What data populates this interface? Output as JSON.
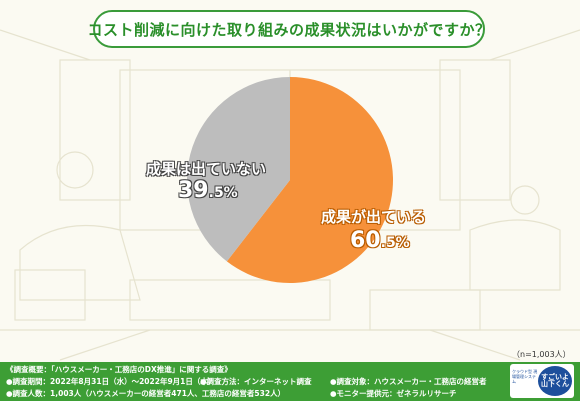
{
  "title": "コスト削減に向けた取り組みの成果状況はいかがですか？",
  "chart_data": {
    "type": "pie",
    "title": "コスト削減に向けた取り組みの成果状況はいかがですか？",
    "start": "12 o'clock, clockwise",
    "slices": [
      {
        "label": "成果が出ている",
        "value": 60.5,
        "value_int": "60",
        "value_dec": ".5%",
        "color": "#f6913a"
      },
      {
        "label": "成果は出ていない",
        "value": 39.5,
        "value_int": "39",
        "value_dec": ".5%",
        "color": "#bdbdbd"
      }
    ],
    "note": "（n=1,003人）"
  },
  "footer": {
    "line1": "《調査概要：「ハウスメーカー・工務店のDX推進」に関する調査》",
    "period": "●調査期間：2022年8月31日（水）〜2022年9月1日（木）",
    "method": "●調査方法：インターネット調査",
    "target": "●調査対象：ハウスメーカー・工務店の経営者",
    "count": "●調査人数：1,003人（ハウスメーカーの経営者471人、工務店の経営者532人）",
    "monitor": "●モニター提供元：ゼネラルリサーチ"
  },
  "logo": {
    "tagline": "クラウド型 現場管理システム",
    "line1": "すごいよ",
    "line2": "山下くん"
  }
}
